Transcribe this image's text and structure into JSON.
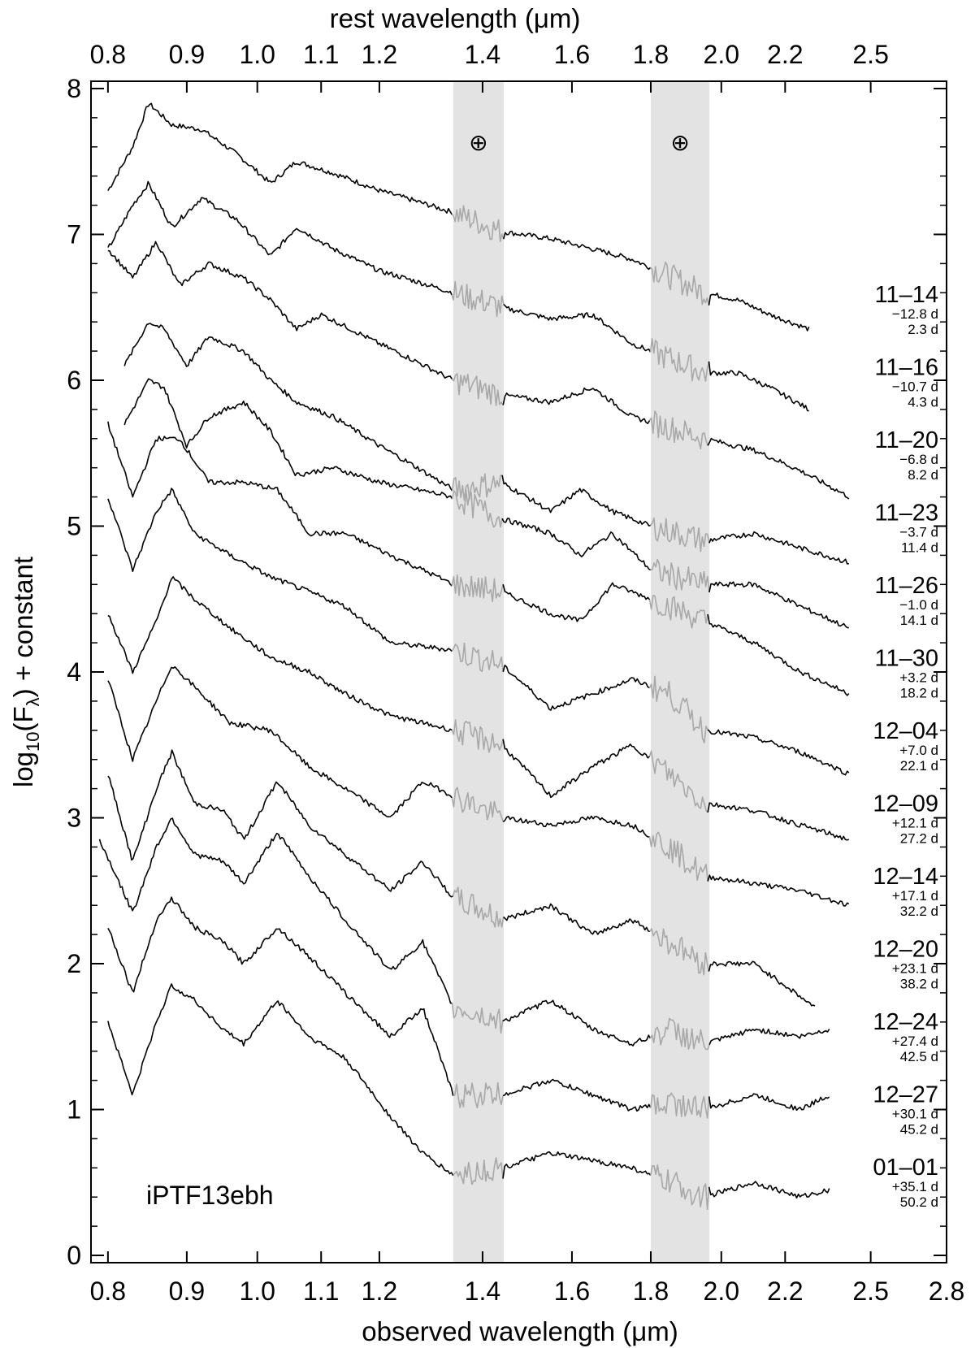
{
  "chart_data": {
    "type": "line",
    "object_label": "iPTF13ebh",
    "xlabel": "observed wavelength (μm)",
    "x2label": "rest wavelength (μm)",
    "ylabel_main": "log",
    "ylabel_sub": "10",
    "ylabel_paren": "(F",
    "ylabel_lambda": "λ",
    "ylabel_tail": ") + constant",
    "xlim": [
      0.78,
      2.8
    ],
    "ylim": [
      -0.05,
      8.05
    ],
    "x_scale": "log",
    "x_ticks": [
      "0.8",
      "0.9",
      "1.0",
      "1.1",
      "1.2",
      "1.4",
      "1.6",
      "1.8",
      "2.0",
      "2.2",
      "2.5",
      "2.8"
    ],
    "x2_ticks": [
      "0.8",
      "0.9",
      "1.0",
      "1.1",
      "1.2",
      "1.4",
      "1.6",
      "1.8",
      "2.0",
      "2.2",
      "2.5"
    ],
    "y_ticks": [
      "0",
      "1",
      "2",
      "3",
      "4",
      "5",
      "6",
      "7",
      "8"
    ],
    "telluric_bands": [
      {
        "x0": 1.34,
        "x1": 1.445,
        "symbol": "⊕"
      },
      {
        "x0": 1.8,
        "x1": 1.965,
        "symbol": "⊕"
      }
    ],
    "series": [
      {
        "date": "11–14",
        "phase": "−12.8 d",
        "age": "2.3 d",
        "points": [
          [
            0.8,
            7.3
          ],
          [
            0.83,
            7.6
          ],
          [
            0.85,
            7.9
          ],
          [
            0.88,
            7.75
          ],
          [
            0.92,
            7.72
          ],
          [
            0.97,
            7.55
          ],
          [
            1.02,
            7.35
          ],
          [
            1.06,
            7.5
          ],
          [
            1.12,
            7.42
          ],
          [
            1.2,
            7.3
          ],
          [
            1.34,
            7.15
          ],
          [
            1.44,
            7.02
          ],
          [
            1.55,
            6.97
          ],
          [
            1.65,
            6.9
          ],
          [
            1.75,
            6.83
          ],
          [
            1.95,
            6.6
          ],
          [
            2.05,
            6.55
          ],
          [
            2.15,
            6.45
          ],
          [
            2.28,
            6.35
          ]
        ]
      },
      {
        "date": "11–16",
        "phase": "−10.7 d",
        "age": "4.3 d",
        "points": [
          [
            0.8,
            6.9
          ],
          [
            0.83,
            7.2
          ],
          [
            0.85,
            7.35
          ],
          [
            0.88,
            7.05
          ],
          [
            0.92,
            7.25
          ],
          [
            0.97,
            7.1
          ],
          [
            1.02,
            6.85
          ],
          [
            1.06,
            7.05
          ],
          [
            1.12,
            6.9
          ],
          [
            1.2,
            6.75
          ],
          [
            1.34,
            6.6
          ],
          [
            1.44,
            6.5
          ],
          [
            1.55,
            6.42
          ],
          [
            1.65,
            6.45
          ],
          [
            1.75,
            6.25
          ],
          [
            1.95,
            6.05
          ],
          [
            2.05,
            6.05
          ],
          [
            2.15,
            5.95
          ],
          [
            2.28,
            5.8
          ]
        ]
      },
      {
        "date": "11–20",
        "phase": "−6.8 d",
        "age": "8.2 d",
        "points": [
          [
            0.8,
            6.9
          ],
          [
            0.83,
            6.7
          ],
          [
            0.86,
            6.95
          ],
          [
            0.89,
            6.65
          ],
          [
            0.93,
            6.8
          ],
          [
            0.98,
            6.7
          ],
          [
            1.02,
            6.55
          ],
          [
            1.06,
            6.35
          ],
          [
            1.1,
            6.45
          ],
          [
            1.2,
            6.25
          ],
          [
            1.34,
            6.0
          ],
          [
            1.44,
            5.9
          ],
          [
            1.55,
            5.85
          ],
          [
            1.65,
            5.95
          ],
          [
            1.75,
            5.75
          ],
          [
            1.95,
            5.6
          ],
          [
            2.1,
            5.52
          ],
          [
            2.25,
            5.38
          ],
          [
            2.42,
            5.2
          ]
        ]
      },
      {
        "date": "11–23",
        "phase": "−3.7 d",
        "age": "11.4 d",
        "points": [
          [
            0.82,
            6.1
          ],
          [
            0.85,
            6.4
          ],
          [
            0.87,
            6.35
          ],
          [
            0.9,
            6.1
          ],
          [
            0.93,
            6.3
          ],
          [
            0.98,
            6.2
          ],
          [
            1.02,
            6.0
          ],
          [
            1.06,
            5.85
          ],
          [
            1.12,
            5.75
          ],
          [
            1.2,
            5.55
          ],
          [
            1.34,
            5.25
          ],
          [
            1.44,
            5.3
          ],
          [
            1.55,
            5.1
          ],
          [
            1.62,
            5.25
          ],
          [
            1.7,
            5.1
          ],
          [
            1.8,
            5.0
          ],
          [
            1.95,
            4.9
          ],
          [
            2.1,
            4.95
          ],
          [
            2.25,
            4.85
          ],
          [
            2.42,
            4.75
          ]
        ]
      },
      {
        "date": "11–26",
        "phase": "−1.0 d",
        "age": "14.1 d",
        "points": [
          [
            0.82,
            5.7
          ],
          [
            0.85,
            6.0
          ],
          [
            0.87,
            5.95
          ],
          [
            0.9,
            5.55
          ],
          [
            0.93,
            5.75
          ],
          [
            0.98,
            5.85
          ],
          [
            1.02,
            5.65
          ],
          [
            1.06,
            5.35
          ],
          [
            1.12,
            5.4
          ],
          [
            1.2,
            5.3
          ],
          [
            1.34,
            5.2
          ],
          [
            1.44,
            5.05
          ],
          [
            1.55,
            4.95
          ],
          [
            1.62,
            4.8
          ],
          [
            1.7,
            4.95
          ],
          [
            1.8,
            4.7
          ],
          [
            1.95,
            4.6
          ],
          [
            2.1,
            4.6
          ],
          [
            2.25,
            4.45
          ],
          [
            2.42,
            4.3
          ]
        ]
      },
      {
        "date": "11–30",
        "phase": "+3.2 d",
        "age": "18.2 d",
        "points": [
          [
            0.8,
            5.7
          ],
          [
            0.83,
            5.2
          ],
          [
            0.86,
            5.6
          ],
          [
            0.89,
            5.6
          ],
          [
            0.93,
            5.3
          ],
          [
            0.98,
            5.3
          ],
          [
            1.03,
            5.25
          ],
          [
            1.08,
            4.95
          ],
          [
            1.14,
            4.95
          ],
          [
            1.22,
            4.8
          ],
          [
            1.34,
            4.6
          ],
          [
            1.44,
            4.55
          ],
          [
            1.55,
            4.4
          ],
          [
            1.62,
            4.35
          ],
          [
            1.7,
            4.6
          ],
          [
            1.8,
            4.5
          ],
          [
            1.95,
            4.35
          ],
          [
            2.1,
            4.2
          ],
          [
            2.25,
            4.0
          ],
          [
            2.42,
            3.85
          ]
        ]
      },
      {
        "date": "12–04",
        "phase": "+7.0 d",
        "age": "22.1 d",
        "points": [
          [
            0.8,
            5.2
          ],
          [
            0.83,
            4.7
          ],
          [
            0.86,
            5.1
          ],
          [
            0.88,
            5.25
          ],
          [
            0.91,
            4.95
          ],
          [
            0.96,
            4.8
          ],
          [
            1.02,
            4.65
          ],
          [
            1.08,
            4.55
          ],
          [
            1.14,
            4.45
          ],
          [
            1.22,
            4.2
          ],
          [
            1.34,
            4.15
          ],
          [
            1.44,
            4.05
          ],
          [
            1.55,
            3.75
          ],
          [
            1.65,
            3.85
          ],
          [
            1.75,
            3.95
          ],
          [
            1.85,
            3.85
          ],
          [
            1.95,
            3.6
          ],
          [
            2.1,
            3.55
          ],
          [
            2.25,
            3.45
          ],
          [
            2.42,
            3.3
          ]
        ]
      },
      {
        "date": "12–09",
        "phase": "+12.1 d",
        "age": "27.2 d",
        "points": [
          [
            0.8,
            4.4
          ],
          [
            0.83,
            4.0
          ],
          [
            0.86,
            4.35
          ],
          [
            0.88,
            4.65
          ],
          [
            0.91,
            4.5
          ],
          [
            0.96,
            4.3
          ],
          [
            1.02,
            4.1
          ],
          [
            1.08,
            4.0
          ],
          [
            1.14,
            3.85
          ],
          [
            1.22,
            3.7
          ],
          [
            1.34,
            3.6
          ],
          [
            1.44,
            3.5
          ],
          [
            1.55,
            3.15
          ],
          [
            1.65,
            3.35
          ],
          [
            1.75,
            3.5
          ],
          [
            1.85,
            3.3
          ],
          [
            1.95,
            3.1
          ],
          [
            2.1,
            3.05
          ],
          [
            2.25,
            2.95
          ],
          [
            2.42,
            2.85
          ]
        ]
      },
      {
        "date": "12–14",
        "phase": "+17.1 d",
        "age": "32.2 d",
        "points": [
          [
            0.8,
            3.95
          ],
          [
            0.83,
            3.4
          ],
          [
            0.86,
            3.8
          ],
          [
            0.88,
            4.05
          ],
          [
            0.91,
            3.9
          ],
          [
            0.96,
            3.65
          ],
          [
            1.02,
            3.6
          ],
          [
            1.08,
            3.35
          ],
          [
            1.14,
            3.2
          ],
          [
            1.22,
            3.0
          ],
          [
            1.28,
            3.25
          ],
          [
            1.34,
            3.15
          ],
          [
            1.44,
            3.0
          ],
          [
            1.55,
            2.95
          ],
          [
            1.65,
            3.0
          ],
          [
            1.75,
            2.95
          ],
          [
            1.85,
            2.8
          ],
          [
            1.95,
            2.6
          ],
          [
            2.1,
            2.55
          ],
          [
            2.25,
            2.5
          ],
          [
            2.42,
            2.4
          ]
        ]
      },
      {
        "date": "12–20",
        "phase": "+23.1 d",
        "age": "38.2 d",
        "points": [
          [
            0.8,
            3.3
          ],
          [
            0.83,
            2.7
          ],
          [
            0.86,
            3.2
          ],
          [
            0.88,
            3.45
          ],
          [
            0.91,
            3.1
          ],
          [
            0.95,
            3.05
          ],
          [
            0.98,
            2.85
          ],
          [
            1.03,
            3.25
          ],
          [
            1.08,
            2.95
          ],
          [
            1.14,
            2.75
          ],
          [
            1.22,
            2.5
          ],
          [
            1.28,
            2.7
          ],
          [
            1.34,
            2.45
          ],
          [
            1.44,
            2.3
          ],
          [
            1.55,
            2.4
          ],
          [
            1.65,
            2.2
          ],
          [
            1.75,
            2.3
          ],
          [
            1.85,
            2.15
          ],
          [
            1.95,
            2.0
          ],
          [
            2.1,
            2.0
          ],
          [
            2.2,
            1.85
          ],
          [
            2.3,
            1.7
          ]
        ]
      },
      {
        "date": "12–24",
        "phase": "+27.4 d",
        "age": "42.5 d",
        "points": [
          [
            0.79,
            2.85
          ],
          [
            0.83,
            2.35
          ],
          [
            0.86,
            2.8
          ],
          [
            0.88,
            3.0
          ],
          [
            0.91,
            2.75
          ],
          [
            0.95,
            2.7
          ],
          [
            0.98,
            2.55
          ],
          [
            1.03,
            2.9
          ],
          [
            1.08,
            2.6
          ],
          [
            1.14,
            2.3
          ],
          [
            1.22,
            1.95
          ],
          [
            1.28,
            2.15
          ],
          [
            1.34,
            1.7
          ],
          [
            1.44,
            1.6
          ],
          [
            1.55,
            1.75
          ],
          [
            1.65,
            1.55
          ],
          [
            1.75,
            1.45
          ],
          [
            1.85,
            1.55
          ],
          [
            1.95,
            1.45
          ],
          [
            2.1,
            1.55
          ],
          [
            2.25,
            1.5
          ],
          [
            2.35,
            1.55
          ]
        ]
      },
      {
        "date": "12–27",
        "phase": "+30.1 d",
        "age": "45.2 d",
        "points": [
          [
            0.8,
            2.25
          ],
          [
            0.83,
            1.8
          ],
          [
            0.86,
            2.3
          ],
          [
            0.88,
            2.45
          ],
          [
            0.91,
            2.25
          ],
          [
            0.95,
            2.15
          ],
          [
            0.98,
            2.0
          ],
          [
            1.03,
            2.25
          ],
          [
            1.08,
            2.05
          ],
          [
            1.14,
            1.8
          ],
          [
            1.22,
            1.5
          ],
          [
            1.28,
            1.7
          ],
          [
            1.34,
            1.1
          ],
          [
            1.44,
            1.1
          ],
          [
            1.55,
            1.2
          ],
          [
            1.65,
            1.1
          ],
          [
            1.75,
            1.0
          ],
          [
            1.85,
            1.05
          ],
          [
            1.95,
            1.0
          ],
          [
            2.1,
            1.1
          ],
          [
            2.25,
            1.0
          ],
          [
            2.35,
            1.1
          ]
        ]
      },
      {
        "date": "01–01",
        "phase": "+35.1 d",
        "age": "50.2 d",
        "points": [
          [
            0.8,
            1.6
          ],
          [
            0.83,
            1.1
          ],
          [
            0.86,
            1.6
          ],
          [
            0.88,
            1.85
          ],
          [
            0.91,
            1.75
          ],
          [
            0.95,
            1.55
          ],
          [
            0.98,
            1.45
          ],
          [
            1.03,
            1.75
          ],
          [
            1.08,
            1.5
          ],
          [
            1.14,
            1.35
          ],
          [
            1.22,
            0.95
          ],
          [
            1.28,
            0.7
          ],
          [
            1.34,
            0.55
          ],
          [
            1.44,
            0.6
          ],
          [
            1.55,
            0.7
          ],
          [
            1.65,
            0.65
          ],
          [
            1.75,
            0.6
          ],
          [
            1.85,
            0.5
          ],
          [
            1.95,
            0.4
          ],
          [
            2.1,
            0.5
          ],
          [
            2.25,
            0.4
          ],
          [
            2.35,
            0.45
          ]
        ]
      }
    ]
  }
}
